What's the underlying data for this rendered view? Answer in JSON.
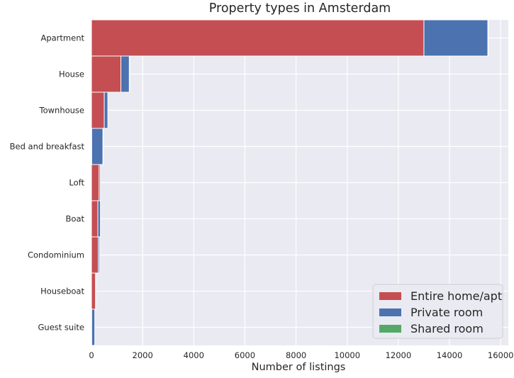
{
  "chart_data": {
    "type": "bar",
    "orientation": "horizontal",
    "stacked": true,
    "title": "Property types in Amsterdam",
    "xlabel": "Number of listings",
    "ylabel": "",
    "xlim": [
      0,
      16300
    ],
    "xticks": [
      0,
      2000,
      4000,
      6000,
      8000,
      10000,
      12000,
      14000,
      16000
    ],
    "grid": true,
    "legend_position": "bottom-right",
    "categories": [
      "Apartment",
      "House",
      "Townhouse",
      "Bed and breakfast",
      "Loft",
      "Boat",
      "Condominium",
      "Houseboat",
      "Guest suite"
    ],
    "series": [
      {
        "name": "Entire home/apt",
        "color": "#c44e52",
        "values": [
          13000,
          1150,
          500,
          10,
          300,
          250,
          270,
          160,
          10
        ]
      },
      {
        "name": "Private room",
        "color": "#4c72b0",
        "values": [
          2500,
          330,
          140,
          440,
          50,
          100,
          50,
          30,
          120
        ]
      },
      {
        "name": "Shared room",
        "color": "#55a868",
        "values": [
          20,
          5,
          0,
          5,
          0,
          0,
          0,
          0,
          0
        ]
      }
    ]
  }
}
